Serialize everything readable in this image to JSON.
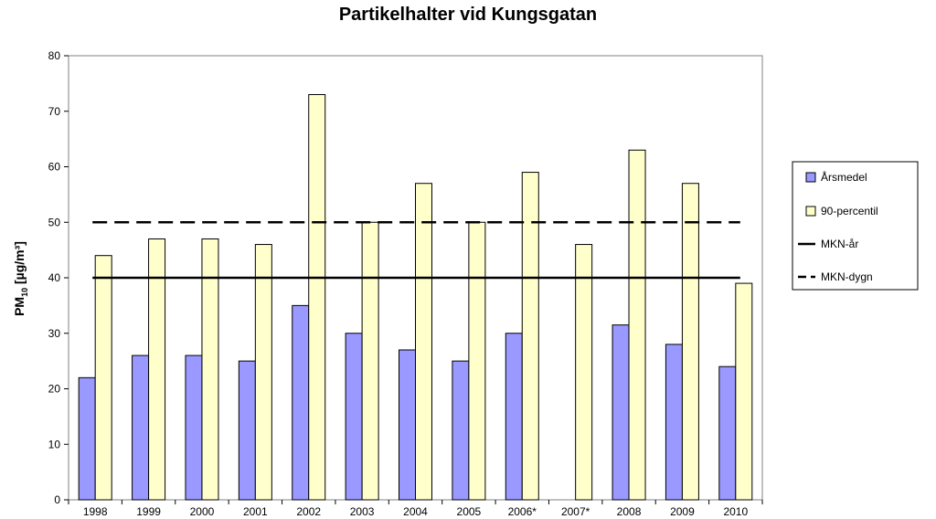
{
  "chart_data": {
    "type": "bar",
    "title": "Partikelhalter vid Kungsgatan",
    "ylabel_main": "PM",
    "ylabel_sub": "10",
    "ylabel_unit": " [µg/m³]",
    "xlabel": "",
    "ylim": [
      0,
      80
    ],
    "yticks": [
      0,
      10,
      20,
      30,
      40,
      50,
      60,
      70,
      80
    ],
    "grid": false,
    "legend_position": "right",
    "categories": [
      "1998",
      "1999",
      "2000",
      "2001",
      "2002",
      "2003",
      "2004",
      "2005",
      "2006*",
      "2007*",
      "2008",
      "2009",
      "2010"
    ],
    "series": [
      {
        "name": "Årsmedel",
        "type": "bar",
        "color": "#9999ff",
        "values": [
          22,
          26,
          26,
          25,
          35,
          30,
          27,
          25,
          30,
          null,
          31.5,
          28,
          24
        ]
      },
      {
        "name": "90-percentil",
        "type": "bar",
        "color": "#ffffcc",
        "values": [
          44,
          47,
          47,
          46,
          73,
          50,
          57,
          50,
          59,
          46,
          63,
          57,
          39
        ]
      }
    ],
    "reference_lines": [
      {
        "name": "MKN-år",
        "value": 40,
        "style": "solid",
        "color": "#000000"
      },
      {
        "name": "MKN-dygn",
        "value": 50,
        "style": "dashed",
        "color": "#000000"
      }
    ]
  }
}
